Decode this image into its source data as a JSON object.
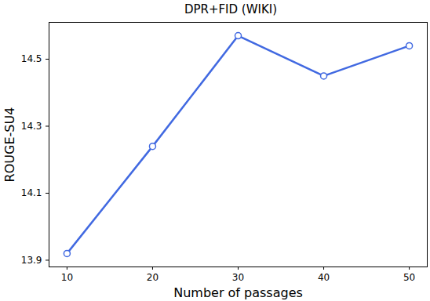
{
  "chart_data": {
    "type": "line",
    "title": "DPR+FID (WIKI)",
    "x_label": "Number of passages",
    "y_label": "ROUGE-SU4",
    "x": [
      10,
      20,
      30,
      40,
      50
    ],
    "series": [
      {
        "name": "DPR+FID (WIKI)",
        "color": "#4169e1",
        "marker": "circle",
        "line_style": "solid",
        "values": [
          13.92,
          14.24,
          14.57,
          14.45,
          14.54
        ]
      }
    ],
    "xlim": [
      7.9,
      52.1
    ],
    "xticks": [
      10,
      20,
      30,
      40,
      50
    ],
    "ylim": [
      13.88,
      14.61
    ],
    "yticks": [
      13.9,
      14.1,
      14.3,
      14.5
    ],
    "grid": false
  }
}
